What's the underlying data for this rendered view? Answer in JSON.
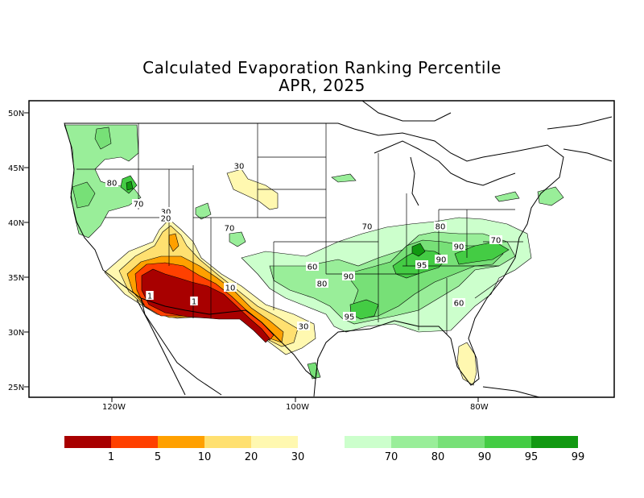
{
  "title": "Calculated Evaporation Ranking Percentile",
  "subtitle": "APR, 2025",
  "axes": {
    "lat_ticks": [
      "50N",
      "45N",
      "40N",
      "35N",
      "30N",
      "25N"
    ],
    "lon_ticks": [
      "120W",
      "100W",
      "80W"
    ]
  },
  "contour_labels": [
    {
      "text": "80",
      "name": "contour-label-80-oregon"
    },
    {
      "text": "70",
      "name": "contour-label-70-oregon"
    },
    {
      "text": "30",
      "name": "contour-label-30-wyoming"
    },
    {
      "text": "30",
      "name": "contour-label-30-nevada"
    },
    {
      "text": "20",
      "name": "contour-label-20-nevada"
    },
    {
      "text": "70",
      "name": "contour-label-70-colorado"
    },
    {
      "text": "10",
      "name": "contour-label-10-newmexico"
    },
    {
      "text": "1",
      "name": "contour-label-1-arizona"
    },
    {
      "text": "1",
      "name": "contour-label-1-california"
    },
    {
      "text": "30",
      "name": "contour-label-30-texas"
    },
    {
      "text": "60",
      "name": "contour-label-60-kansas"
    },
    {
      "text": "80",
      "name": "contour-label-80-texas"
    },
    {
      "text": "90",
      "name": "contour-label-90-arkansas"
    },
    {
      "text": "95",
      "name": "contour-label-95-louisiana"
    },
    {
      "text": "70",
      "name": "contour-label-70-missouri"
    },
    {
      "text": "80",
      "name": "contour-label-80-ohio"
    },
    {
      "text": "90",
      "name": "contour-label-90-westvirginia"
    },
    {
      "text": "70",
      "name": "contour-label-70-virginia"
    },
    {
      "text": "90",
      "name": "contour-label-90-tennessee"
    },
    {
      "text": "95",
      "name": "contour-label-95-tennessee"
    },
    {
      "text": "60",
      "name": "contour-label-60-georgia"
    }
  ],
  "legend": {
    "colors": [
      "#a80000",
      "#ff4000",
      "#ffa000",
      "#ffe070",
      "#fff8b0",
      "#ccffcc",
      "#99ee99",
      "#77e077",
      "#44cc44",
      "#119911"
    ],
    "labels": [
      "1",
      "5",
      "10",
      "20",
      "30",
      "70",
      "80",
      "90",
      "95",
      "99"
    ]
  }
}
